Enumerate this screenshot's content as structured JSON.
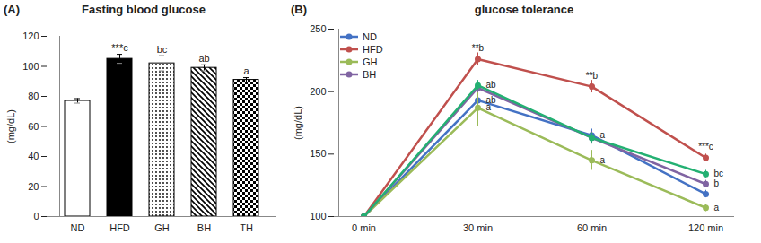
{
  "chart_data": [
    {
      "type": "bar",
      "panel": "(A)",
      "title": "Fasting blood glucose",
      "y_label": "(mg/dL)",
      "categories": [
        "ND",
        "HFD",
        "GH",
        "BH",
        "TH"
      ],
      "values": [
        77,
        105,
        102,
        99,
        91
      ],
      "errors": [
        1.5,
        3,
        5,
        2,
        1.5
      ],
      "annotations": [
        null,
        "***c",
        "bc",
        "ab",
        "a"
      ],
      "colors": [
        "#ffffff",
        "#000000",
        "#000000",
        "#000000",
        "#000000"
      ],
      "ylim": [
        0,
        120
      ],
      "yticks": [
        0,
        20,
        40,
        60,
        80,
        100,
        120
      ]
    },
    {
      "type": "line",
      "panel": "(B)",
      "title": "glucose tolerance",
      "y_label": "(mg/dL)",
      "categories": [
        "0 min",
        "30 min",
        "60 min",
        "120 min"
      ],
      "series": [
        {
          "name": "ND",
          "color": "#4472c4",
          "values": [
            100,
            193,
            165,
            118
          ],
          "errors": [
            0,
            8,
            5,
            3
          ],
          "annotations": [
            null,
            "ab",
            "a",
            null
          ]
        },
        {
          "name": "HFD",
          "color": "#c0504d",
          "values": [
            100,
            226,
            204,
            147
          ],
          "errors": [
            0,
            5,
            5,
            3
          ],
          "annotations": [
            null,
            "**b",
            "**b",
            "***c"
          ]
        },
        {
          "name": "GH",
          "color": "#9bbb59",
          "values": [
            100,
            187,
            145,
            107
          ],
          "errors": [
            0,
            15,
            8,
            3
          ],
          "annotations": [
            null,
            "a",
            "a",
            "a"
          ]
        },
        {
          "name": "BH",
          "color": "#8064a2",
          "values": [
            100,
            203,
            163,
            126
          ],
          "errors": [
            0,
            4,
            5,
            3
          ],
          "annotations": [
            null,
            null,
            null,
            "b"
          ]
        },
        {
          "name": null,
          "color": "#23b072",
          "values": [
            100,
            205,
            163,
            134
          ],
          "errors": [
            0,
            4,
            4,
            3
          ],
          "annotations": [
            null,
            "ab",
            null,
            "bc"
          ]
        }
      ],
      "ylim": [
        100,
        250
      ],
      "yticks": [
        100,
        150,
        200,
        250
      ],
      "legend": "upper left",
      "marker": "circle"
    }
  ]
}
